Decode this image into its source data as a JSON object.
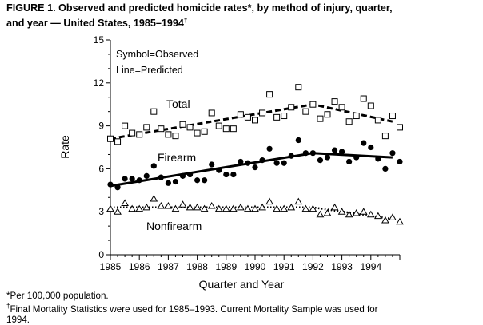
{
  "figure": {
    "title_line1": "FIGURE 1. Observed and predicted homicide rates*, by method of injury, quarter,",
    "title_line2": "and year — United States, 1985–1994",
    "title_mark": "†"
  },
  "footnotes": {
    "note1": "*Per 100,000 population.",
    "note2_mark": "†",
    "note2_line1": "Final Mortality Statistics were used for 1985–1993. Current Mortality Sample was used for",
    "note2_line2": "1994."
  },
  "chart_data": {
    "type": "scatter",
    "title": "",
    "xlabel": "Quarter and Year",
    "ylabel": "Rate",
    "xlim": [
      1985,
      1995
    ],
    "ylim": [
      0,
      15
    ],
    "x_ticks": [
      "1985",
      "1986",
      "1987",
      "1988",
      "1989",
      "1990",
      "1991",
      "1992",
      "1993",
      "1994"
    ],
    "y_ticks": [
      0,
      3,
      6,
      9,
      12,
      15
    ],
    "grid": false,
    "legend": {
      "line1": "Symbol=Observed",
      "line2": "Line=Predicted",
      "placement": "top-left"
    },
    "series": [
      {
        "name": "Total",
        "marker": "open-square",
        "line_style": "dashed",
        "observed": [
          8.1,
          7.9,
          9.0,
          8.5,
          8.4,
          8.9,
          10.0,
          8.8,
          8.4,
          8.3,
          9.1,
          8.9,
          8.5,
          8.6,
          9.9,
          9.0,
          8.8,
          8.8,
          9.8,
          9.6,
          9.4,
          9.9,
          11.2,
          9.6,
          9.7,
          10.3,
          11.7,
          10.0,
          10.5,
          9.5,
          9.8,
          10.7,
          10.3,
          9.3,
          9.7,
          10.9,
          10.4,
          9.4,
          8.3,
          9.7,
          8.9
        ],
        "predicted_start": 8.1,
        "predicted_peak": 10.5,
        "predicted_end": 9.3
      },
      {
        "name": "Firearm",
        "marker": "filled-circle",
        "line_style": "solid",
        "observed": [
          4.9,
          4.7,
          5.3,
          5.3,
          5.2,
          5.5,
          6.2,
          5.4,
          5.0,
          5.1,
          5.5,
          5.6,
          5.2,
          5.2,
          6.3,
          5.9,
          5.6,
          5.6,
          6.5,
          6.4,
          6.1,
          6.6,
          7.4,
          6.4,
          6.4,
          6.9,
          8.0,
          7.1,
          7.1,
          6.6,
          6.8,
          7.3,
          7.2,
          6.5,
          6.8,
          7.8,
          7.5,
          6.7,
          6.0,
          7.1,
          6.5
        ],
        "predicted_start": 4.8,
        "predicted_peak": 7.1,
        "predicted_end": 6.8
      },
      {
        "name": "Nonfirearm",
        "marker": "open-triangle",
        "line_style": "dotted",
        "observed": [
          3.2,
          3.0,
          3.6,
          3.2,
          3.2,
          3.3,
          3.9,
          3.4,
          3.4,
          3.2,
          3.5,
          3.3,
          3.3,
          3.2,
          3.4,
          3.2,
          3.2,
          3.2,
          3.3,
          3.2,
          3.2,
          3.3,
          3.7,
          3.2,
          3.2,
          3.3,
          3.7,
          3.2,
          3.2,
          2.8,
          2.9,
          3.3,
          3.0,
          2.8,
          2.9,
          3.0,
          2.8,
          2.7,
          2.4,
          2.6,
          2.3
        ],
        "predicted_start": 3.3,
        "predicted_peak": 3.3,
        "predicted_end": 2.5
      }
    ]
  }
}
